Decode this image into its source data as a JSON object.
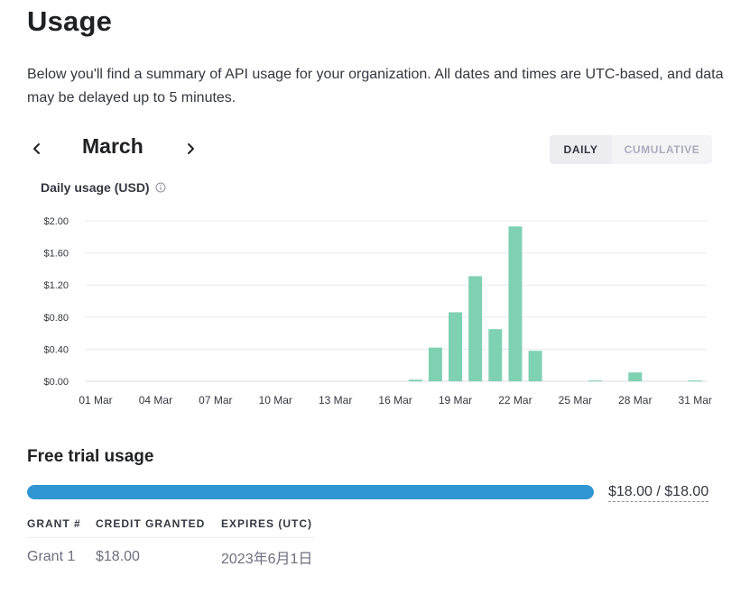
{
  "page": {
    "title": "Usage",
    "description": "Below you'll find a summary of API usage for your organization. All dates and times are UTC-based, and data may be delayed up to 5 minutes."
  },
  "month_nav": {
    "month": "March",
    "prev_icon": "chevron-left-icon",
    "next_icon": "chevron-right-icon"
  },
  "view_toggle": {
    "daily": "DAILY",
    "cumulative": "CUMULATIVE",
    "selected": "DAILY"
  },
  "chart": {
    "title": "Daily usage (USD)",
    "info_icon": "info-icon"
  },
  "chart_data": {
    "type": "bar",
    "title": "Daily usage (USD)",
    "xlabel": "",
    "ylabel": "",
    "ylim": [
      0,
      2.0
    ],
    "y_ticks": [
      "$0.00",
      "$0.40",
      "$0.80",
      "$1.20",
      "$1.60",
      "$2.00"
    ],
    "y_tick_values": [
      0,
      0.4,
      0.8,
      1.2,
      1.6,
      2.0
    ],
    "x_tick_labels": [
      "01 Mar",
      "04 Mar",
      "07 Mar",
      "10 Mar",
      "13 Mar",
      "16 Mar",
      "19 Mar",
      "22 Mar",
      "25 Mar",
      "28 Mar",
      "31 Mar"
    ],
    "x_tick_days": [
      1,
      4,
      7,
      10,
      13,
      16,
      19,
      22,
      25,
      28,
      31
    ],
    "categories": [
      1,
      2,
      3,
      4,
      5,
      6,
      7,
      8,
      9,
      10,
      11,
      12,
      13,
      14,
      15,
      16,
      17,
      18,
      19,
      20,
      21,
      22,
      23,
      24,
      25,
      26,
      27,
      28,
      29,
      30,
      31
    ],
    "values": [
      0,
      0,
      0,
      0,
      0,
      0,
      0,
      0,
      0,
      0,
      0,
      0,
      0,
      0,
      0,
      0,
      0.02,
      0.42,
      0.86,
      1.31,
      0.65,
      1.93,
      0.38,
      0,
      0,
      0.01,
      0,
      0.11,
      0,
      0,
      0.01
    ],
    "grid": true,
    "color": "#7fd1b4"
  },
  "free_trial": {
    "title": "Free trial usage",
    "used_fraction": 1.0,
    "progress_text": "$18.00 / $18.00",
    "bar_color": "#2f96d3",
    "table": {
      "headers": [
        "GRANT #",
        "CREDIT GRANTED",
        "EXPIRES (UTC)"
      ],
      "rows": [
        [
          "Grant 1",
          "$18.00",
          "2023年6月1日"
        ]
      ]
    }
  }
}
